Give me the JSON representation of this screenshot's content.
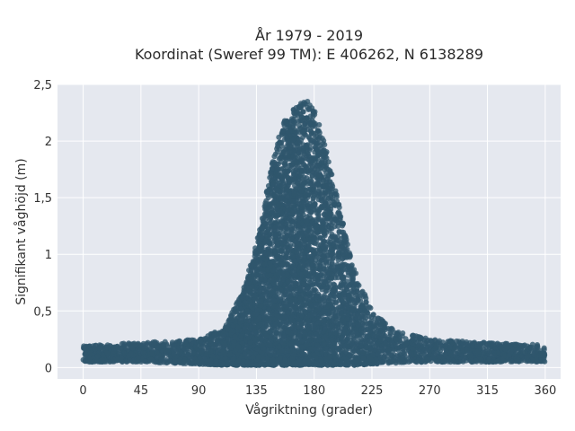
{
  "chart_data": {
    "type": "scatter",
    "title": "År 1979 - 2019",
    "subtitle": "Koordinat (Sweref 99 TM): E 406262, N 6138289",
    "xlabel": "Vågriktning (grader)",
    "ylabel": "Signifikant våghöjd (m)",
    "xlim": [
      -20,
      372
    ],
    "ylim": [
      -0.1,
      2.5
    ],
    "x_ticks": [
      0,
      45,
      90,
      135,
      180,
      225,
      270,
      315,
      360
    ],
    "x_tick_labels": [
      "0",
      "45",
      "90",
      "135",
      "180",
      "225",
      "270",
      "315",
      "360"
    ],
    "y_ticks": [
      0,
      0.5,
      1,
      1.5,
      2,
      2.5
    ],
    "y_tick_labels": [
      "0",
      "0,5",
      "1",
      "1,5",
      "2",
      "2,5"
    ],
    "grid": true,
    "marker_color": "#2f566d",
    "background_color": "#e5e8ef",
    "distribution_envelope": {
      "direction": [
        0,
        45,
        90,
        110,
        125,
        135,
        145,
        155,
        165,
        172,
        180,
        190,
        200,
        210,
        225,
        240,
        270,
        315,
        360
      ],
      "height_min": [
        0.05,
        0.05,
        0.03,
        0.02,
        0.02,
        0.02,
        0.02,
        0.02,
        0.02,
        0.02,
        0.02,
        0.02,
        0.02,
        0.02,
        0.03,
        0.04,
        0.05,
        0.05,
        0.05
      ],
      "height_max": [
        0.2,
        0.22,
        0.25,
        0.35,
        0.7,
        1.1,
        1.7,
        2.15,
        2.3,
        2.38,
        2.3,
        1.9,
        1.4,
        0.9,
        0.5,
        0.35,
        0.25,
        0.22,
        0.2
      ]
    }
  }
}
